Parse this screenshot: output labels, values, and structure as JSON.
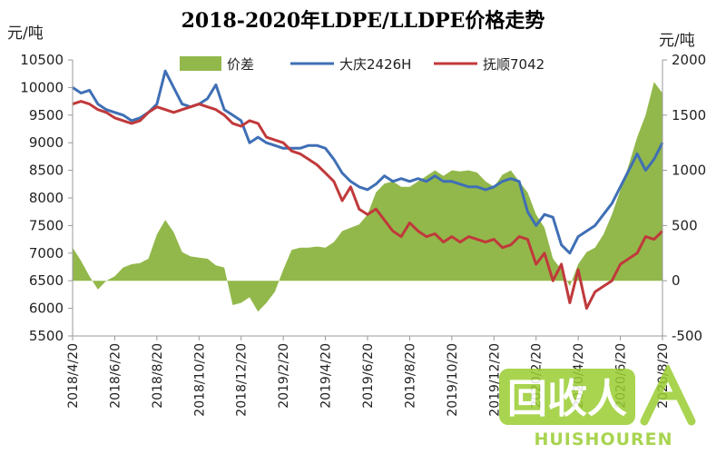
{
  "chart_data": {
    "type": "line",
    "title": "2018-2020年LDPE/LLDPE价格走势",
    "left_unit": "元/吨",
    "right_unit": "元/吨",
    "x_ticks": [
      "2018/4/20",
      "2018/6/20",
      "2018/8/20",
      "2018/10/20",
      "2018/12/20",
      "2019/2/20",
      "2019/4/20",
      "2019/6/20",
      "2019/8/20",
      "2019/10/20",
      "2019/12/20",
      "2020/2/20",
      "2020/4/20",
      "2020/6/20",
      "2020/8/20"
    ],
    "y_left": {
      "min": 5500,
      "max": 10500,
      "ticks": [
        10500,
        10000,
        9500,
        9000,
        8500,
        8000,
        7500,
        7000,
        6500,
        6000,
        5500
      ]
    },
    "y_right": {
      "min": -500,
      "max": 2000,
      "ticks": [
        2000,
        1500,
        1000,
        500,
        0,
        -500
      ]
    },
    "legend": {
      "position": "top",
      "entries": [
        "价差",
        "大庆2426H",
        "抚顺7042"
      ]
    },
    "colors": {
      "spread": "#92b84b",
      "daqing": "#3f6fb5",
      "fushun": "#c0393b"
    },
    "series": [
      {
        "name": "价差",
        "kind": "area",
        "axis": "right",
        "color": "#92b84b",
        "x": [
          0,
          0.2,
          0.4,
          0.6,
          0.8,
          1,
          1.2,
          1.4,
          1.6,
          1.8,
          2,
          2.2,
          2.4,
          2.6,
          2.8,
          3,
          3.2,
          3.4,
          3.6,
          3.8,
          4,
          4.2,
          4.4,
          4.6,
          4.8,
          5,
          5.2,
          5.4,
          5.6,
          5.8,
          6,
          6.2,
          6.4,
          6.6,
          6.8,
          7,
          7.2,
          7.4,
          7.6,
          7.8,
          8,
          8.2,
          8.4,
          8.6,
          8.8,
          9,
          9.2,
          9.4,
          9.6,
          9.8,
          10,
          10.2,
          10.4,
          10.6,
          10.8,
          11,
          11.2,
          11.4,
          11.6,
          11.8,
          12,
          12.2,
          12.4,
          12.6,
          12.8,
          13,
          13.2,
          13.4,
          13.6,
          13.8,
          14
        ],
        "values": [
          300,
          180,
          40,
          -80,
          0,
          40,
          120,
          150,
          160,
          200,
          420,
          550,
          440,
          260,
          220,
          210,
          200,
          140,
          120,
          -220,
          -200,
          -150,
          -280,
          -200,
          -100,
          100,
          280,
          300,
          300,
          310,
          300,
          350,
          450,
          480,
          510,
          600,
          800,
          880,
          900,
          850,
          850,
          900,
          950,
          1000,
          950,
          1000,
          990,
          1000,
          980,
          900,
          850,
          960,
          1000,
          900,
          800,
          600,
          480,
          200,
          100,
          -50,
          150,
          260,
          300,
          420,
          600,
          820,
          1050,
          1300,
          1500,
          1800,
          1700
        ]
      },
      {
        "name": "大庆2426H",
        "kind": "line",
        "axis": "left",
        "color": "#3f6fb5",
        "x": [
          0,
          0.2,
          0.4,
          0.6,
          0.8,
          1,
          1.2,
          1.4,
          1.6,
          1.8,
          2,
          2.2,
          2.4,
          2.6,
          2.8,
          3,
          3.2,
          3.4,
          3.6,
          3.8,
          4,
          4.2,
          4.4,
          4.6,
          4.8,
          5,
          5.2,
          5.4,
          5.6,
          5.8,
          6,
          6.2,
          6.4,
          6.6,
          6.8,
          7,
          7.2,
          7.4,
          7.6,
          7.8,
          8,
          8.2,
          8.4,
          8.6,
          8.8,
          9,
          9.2,
          9.4,
          9.6,
          9.8,
          10,
          10.2,
          10.4,
          10.6,
          10.8,
          11,
          11.2,
          11.4,
          11.6,
          11.8,
          12,
          12.2,
          12.4,
          12.6,
          12.8,
          13,
          13.2,
          13.4,
          13.6,
          13.8,
          14
        ],
        "values": [
          10000,
          9900,
          9950,
          9700,
          9600,
          9550,
          9500,
          9400,
          9450,
          9550,
          9700,
          10300,
          10000,
          9700,
          9650,
          9700,
          9800,
          10050,
          9600,
          9500,
          9400,
          9000,
          9100,
          9000,
          8950,
          8900,
          8900,
          8900,
          8950,
          8950,
          8900,
          8700,
          8450,
          8300,
          8200,
          8150,
          8250,
          8400,
          8300,
          8350,
          8300,
          8350,
          8300,
          8400,
          8300,
          8300,
          8250,
          8200,
          8200,
          8150,
          8200,
          8300,
          8350,
          8300,
          7750,
          7500,
          7700,
          7650,
          7150,
          7000,
          7300,
          7400,
          7500,
          7700,
          7900,
          8200,
          8500,
          8800,
          8500,
          8700,
          9000
        ]
      },
      {
        "name": "抚顺7042",
        "kind": "line",
        "axis": "left",
        "color": "#c0393b",
        "x": [
          0,
          0.2,
          0.4,
          0.6,
          0.8,
          1,
          1.2,
          1.4,
          1.6,
          1.8,
          2,
          2.2,
          2.4,
          2.6,
          2.8,
          3,
          3.2,
          3.4,
          3.6,
          3.8,
          4,
          4.2,
          4.4,
          4.6,
          4.8,
          5,
          5.2,
          5.4,
          5.6,
          5.8,
          6,
          6.2,
          6.4,
          6.6,
          6.8,
          7,
          7.2,
          7.4,
          7.6,
          7.8,
          8,
          8.2,
          8.4,
          8.6,
          8.8,
          9,
          9.2,
          9.4,
          9.6,
          9.8,
          10,
          10.2,
          10.4,
          10.6,
          10.8,
          11,
          11.2,
          11.4,
          11.6,
          11.8,
          12,
          12.2,
          12.4,
          12.6,
          12.8,
          13,
          13.2,
          13.4,
          13.6,
          13.8,
          14
        ],
        "values": [
          9700,
          9750,
          9700,
          9600,
          9550,
          9450,
          9400,
          9350,
          9400,
          9550,
          9650,
          9600,
          9550,
          9600,
          9650,
          9700,
          9650,
          9600,
          9500,
          9350,
          9300,
          9400,
          9350,
          9100,
          9050,
          9000,
          8850,
          8800,
          8700,
          8600,
          8450,
          8300,
          7950,
          8200,
          7800,
          7700,
          7800,
          7600,
          7400,
          7300,
          7550,
          7400,
          7300,
          7350,
          7200,
          7300,
          7200,
          7300,
          7250,
          7200,
          7250,
          7100,
          7150,
          7300,
          7250,
          6800,
          7000,
          6500,
          6800,
          6100,
          6700,
          6000,
          6300,
          6400,
          6500,
          6800,
          6900,
          7000,
          7300,
          7250,
          7400
        ]
      }
    ]
  },
  "watermark": {
    "logo_text": "回收人",
    "brand": "HUISHOUREN"
  }
}
